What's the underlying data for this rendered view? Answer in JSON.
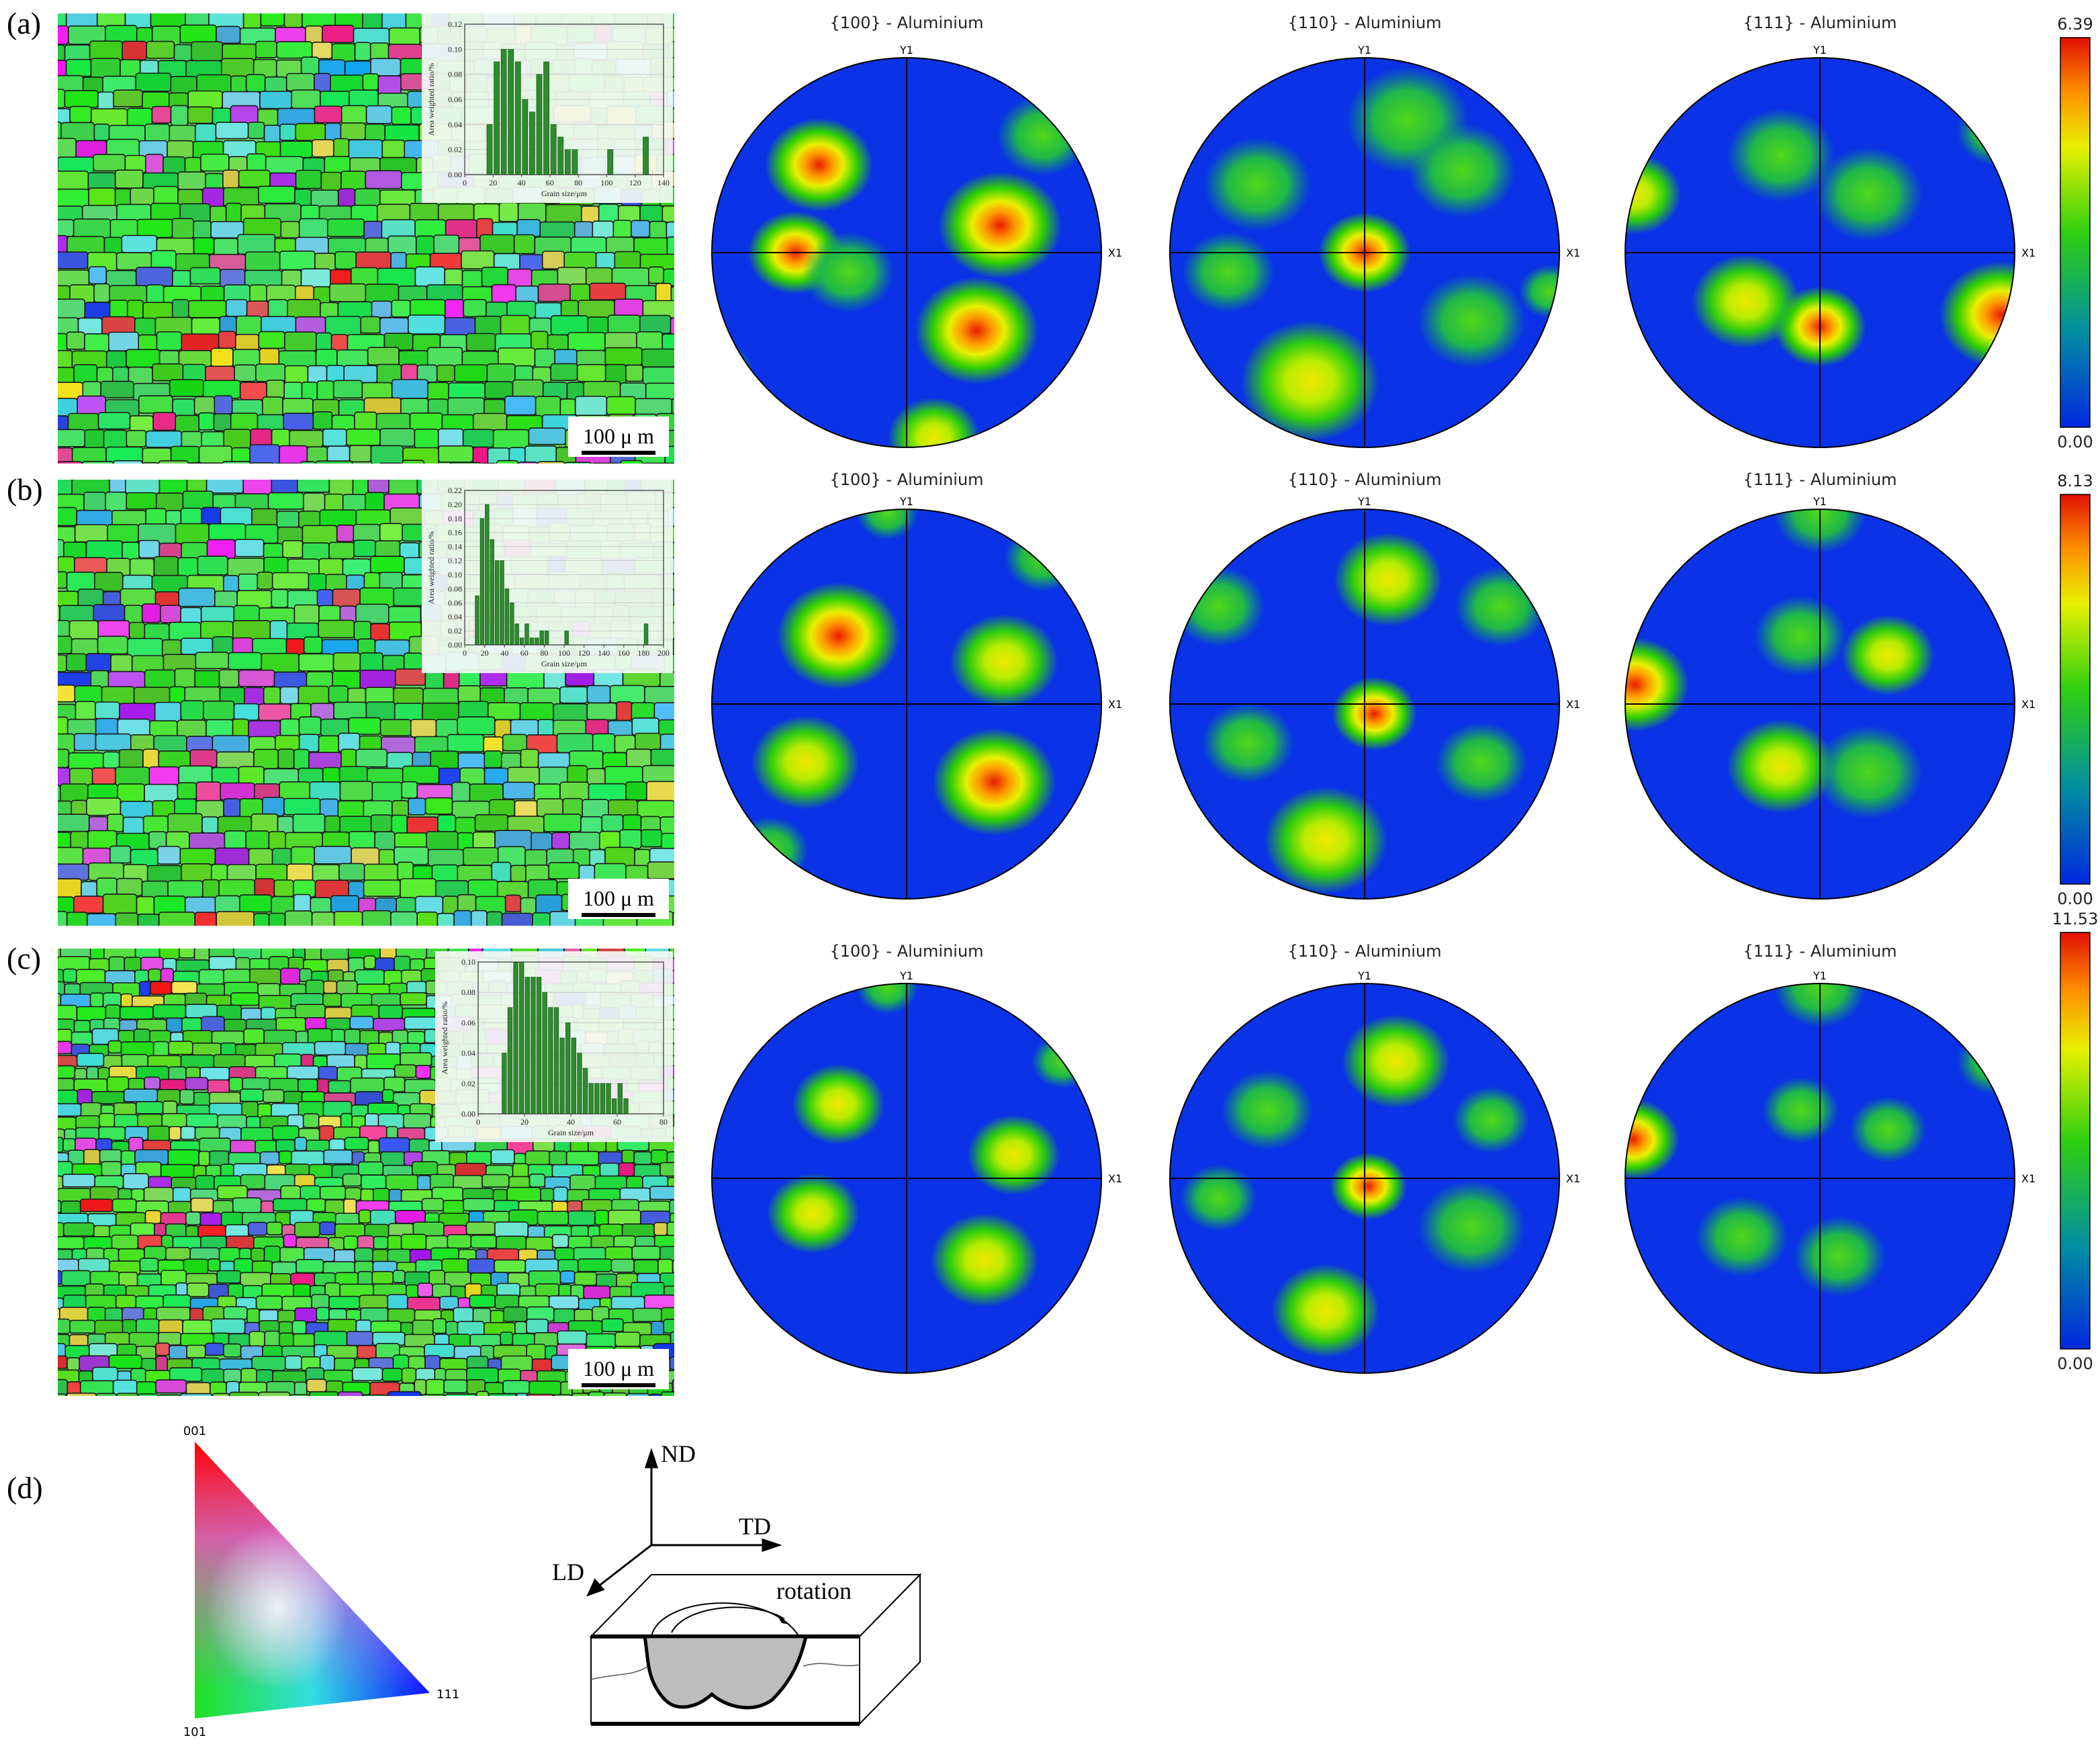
{
  "chart_data": [
    {
      "type": "histogram",
      "xlabel": "Grain size/μm",
      "ylabel": "Area weighted ratio/%",
      "color": "#2e8b2e",
      "bins": [
        15,
        20,
        25,
        30,
        35,
        40,
        45,
        50,
        55,
        60,
        65,
        70,
        75,
        80,
        85,
        90,
        95,
        100,
        105,
        110,
        115,
        120,
        125,
        130
      ],
      "values": [
        0.04,
        0.09,
        0.1,
        0.1,
        0.09,
        0.06,
        0.05,
        0.08,
        0.09,
        0.04,
        0.03,
        0.02,
        0.02,
        0,
        0,
        0,
        0,
        0.02,
        0,
        0,
        0,
        0,
        0.03
      ],
      "xlim": [
        0,
        140
      ],
      "xticks": [
        0,
        20,
        40,
        60,
        80,
        100,
        120,
        140
      ],
      "ylim": [
        0,
        0.12
      ],
      "yticks": [
        {
          "value": 0,
          "label": "0.00"
        },
        0.02,
        0.04,
        0.06,
        0.08,
        {
          "value": 0.1,
          "label": "0.10"
        },
        0.12
      ],
      "grid": true
    },
    {
      "type": "histogram",
      "xlabel": "Grain size/μm",
      "ylabel": "Area weighted ratio/%",
      "color": "#2e8b2e",
      "bins": [
        10,
        15,
        20,
        25,
        30,
        35,
        40,
        45,
        50,
        55,
        60,
        65,
        70,
        75,
        80,
        85,
        90,
        95,
        100,
        105,
        110,
        115,
        120,
        125,
        130,
        135,
        140,
        145,
        150,
        155,
        160,
        165,
        170,
        175,
        180,
        185
      ],
      "values": [
        0.07,
        0.18,
        0.2,
        0.15,
        0.12,
        0.12,
        0.08,
        0.06,
        0.03,
        0.01,
        0.03,
        0.01,
        0.01,
        0.02,
        0.02,
        0,
        0,
        0,
        0.02,
        0,
        0,
        0,
        0,
        0,
        0,
        0,
        0,
        0,
        0,
        0,
        0,
        0,
        0,
        0,
        0.03
      ],
      "xlim": [
        0,
        200
      ],
      "xticks": [
        0,
        20,
        40,
        60,
        80,
        100,
        120,
        140,
        160,
        180,
        200
      ],
      "ylim": [
        0,
        0.22
      ],
      "yticks": [
        {
          "value": 0,
          "label": "0.00"
        },
        0.02,
        0.04,
        0.06,
        0.08,
        {
          "value": 0.1,
          "label": "0.10"
        },
        0.12,
        0.14,
        0.16,
        0.18,
        {
          "value": 0.2,
          "label": "0.20"
        },
        0.22
      ],
      "grid": true
    },
    {
      "type": "histogram",
      "xlabel": "Grain size/μm",
      "ylabel": "Area weighted ratio/%",
      "color": "#2e8b2e",
      "bins": [
        10,
        12.5,
        15,
        17.5,
        20,
        22.5,
        25,
        27.5,
        30,
        32.5,
        35,
        37.5,
        40,
        42.5,
        45,
        47.5,
        50,
        52.5,
        55,
        57.5,
        60,
        62.5,
        65
      ],
      "values": [
        0.04,
        0.07,
        0.1,
        0.1,
        0.09,
        0.09,
        0.09,
        0.08,
        0.07,
        0.07,
        0.05,
        0.06,
        0.05,
        0.04,
        0.03,
        0.02,
        0.02,
        0.02,
        0.02,
        0.01,
        0.02,
        0.01
      ],
      "xlim": [
        0,
        80
      ],
      "xticks": [
        0,
        20,
        40,
        60,
        80
      ],
      "ylim": [
        0,
        0.1
      ],
      "yticks": [
        {
          "value": 0,
          "label": "0.00"
        },
        0.02,
        0.04,
        0.06,
        0.08,
        {
          "value": 0.1,
          "label": "0.10"
        }
      ],
      "grid": true
    }
  ],
  "panels": [
    {
      "label": "(a)",
      "scale_bar": "100 μ m",
      "pole_figures": [
        {
          "title": "{100} - Aluminium",
          "y_axis": "Y1",
          "x_axis": "X1"
        },
        {
          "title": "{110} - Aluminium",
          "y_axis": "Y1",
          "x_axis": "X1"
        },
        {
          "title": "{111} - Aluminium",
          "y_axis": "Y1",
          "x_axis": "X1"
        }
      ],
      "colorbar": {
        "ticks": [
          {
            "value": 0,
            "label": "0.00"
          },
          6.39
        ]
      }
    },
    {
      "label": "(b)",
      "scale_bar": "100 μ m",
      "pole_figures": [
        {
          "title": "{100} - Aluminium",
          "y_axis": "Y1",
          "x_axis": "X1"
        },
        {
          "title": "{110} - Aluminium",
          "y_axis": "Y1",
          "x_axis": "X1"
        },
        {
          "title": "{111} - Aluminium",
          "y_axis": "Y1",
          "x_axis": "X1"
        }
      ],
      "colorbar": {
        "ticks": [
          {
            "value": 0,
            "label": "0.00"
          },
          8.13
        ]
      }
    },
    {
      "label": "(c)",
      "scale_bar": "100 μ m",
      "pole_figures": [
        {
          "title": "{100} - Aluminium",
          "y_axis": "Y1",
          "x_axis": "X1"
        },
        {
          "title": "{110} - Aluminium",
          "y_axis": "Y1",
          "x_axis": "X1"
        },
        {
          "title": "{111} - Aluminium",
          "y_axis": "Y1",
          "x_axis": "X1"
        }
      ],
      "colorbar": {
        "ticks": [
          {
            "value": 0,
            "label": "0.00"
          },
          11.53
        ]
      }
    }
  ],
  "legend_panel": {
    "label": "(d)",
    "ipf": {
      "top": "001",
      "bottom_left": "101",
      "bottom_right": "111"
    },
    "axes": {
      "nd": "ND",
      "td": "TD",
      "ld": "LD"
    },
    "rotation": "rotation"
  }
}
